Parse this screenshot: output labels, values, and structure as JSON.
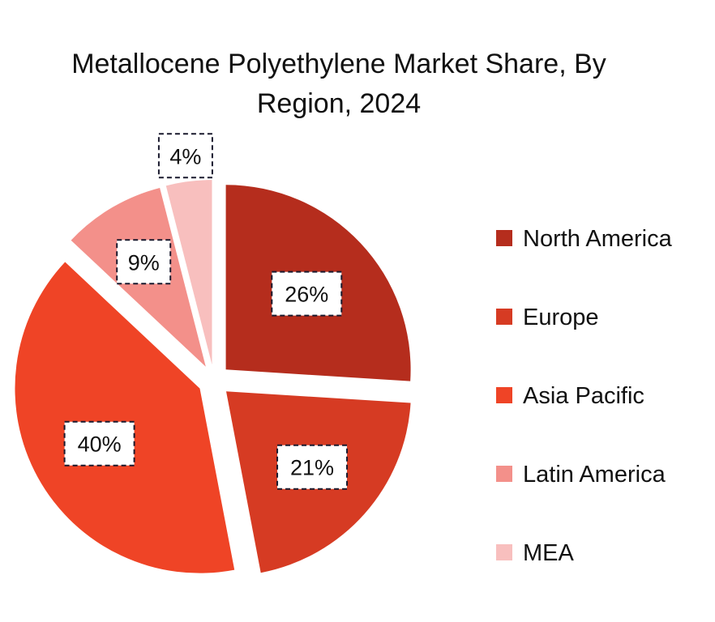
{
  "chart_data": {
    "type": "pie",
    "title": "Metallocene Polyethylene Market Share, By Region, 2024",
    "title_lines": [
      "Metallocene Polyethylene Market Share, By",
      "Region, 2024"
    ],
    "categories": [
      "North America",
      "Europe",
      "Asia Pacific",
      "Latin America",
      "MEA"
    ],
    "values": [
      26,
      21,
      40,
      9,
      4
    ],
    "labels": [
      "26%",
      "21%",
      "40%",
      "9%",
      "4%"
    ],
    "colors": [
      "#b52d1d",
      "#d63b23",
      "#ef4426",
      "#f3908a",
      "#f8bfbe"
    ],
    "exploded": true,
    "start_angle_deg": 0,
    "direction": "clockwise",
    "legend_position": "right"
  }
}
